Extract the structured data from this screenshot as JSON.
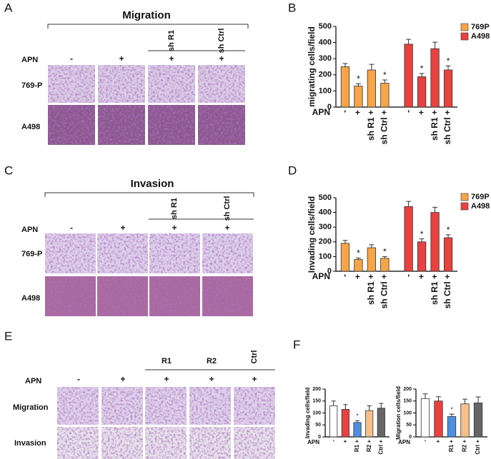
{
  "panels": {
    "letters": [
      "A",
      "B",
      "C",
      "D",
      "E",
      "F"
    ],
    "A": {
      "title": "Migration",
      "treatment": "APN",
      "conditions": [
        "-",
        "+",
        "+",
        "+"
      ],
      "knockdowns": [
        "sh R1",
        "sh Ctrl"
      ],
      "rows": [
        "769-P",
        "A498"
      ]
    },
    "C": {
      "title": "Invasion",
      "treatment": "APN",
      "conditions": [
        "-",
        "+",
        "+",
        "+"
      ],
      "knockdowns": [
        "sh R1",
        "sh Ctrl"
      ],
      "rows": [
        "769-P",
        "A498"
      ]
    },
    "E": {
      "treatment": "APN",
      "conditions": [
        "-",
        "+",
        "+",
        "+",
        "+"
      ],
      "knockdowns": [
        "R1",
        "R2",
        "Ctrl"
      ],
      "rows": [
        "Migration",
        "Invasion"
      ]
    }
  },
  "chart_data": [
    {
      "type": "bar",
      "y_label": "migrating cells/field",
      "x_label": "APN",
      "categories": [
        "-",
        "+",
        "sh R1 +",
        "sh Ctrl +"
      ],
      "ylim": [
        0,
        500
      ],
      "yticks": [
        0,
        100,
        200,
        300,
        400,
        500
      ],
      "legend": "right",
      "series": [
        {
          "name": "769P",
          "color": "#f7a546",
          "values": [
            250,
            130,
            230,
            148
          ],
          "errors": [
            20,
            15,
            35,
            20
          ],
          "significance": [
            null,
            "*",
            null,
            "*"
          ]
        },
        {
          "name": "A498",
          "color": "#e8413f",
          "values": [
            390,
            188,
            362,
            230
          ],
          "errors": [
            30,
            20,
            40,
            25
          ],
          "significance": [
            null,
            "*",
            null,
            "*"
          ]
        }
      ]
    },
    {
      "type": "bar",
      "y_label": "Invading cells/field",
      "x_label": "APN",
      "categories": [
        "-",
        "+",
        "sh R1 +",
        "sh Ctrl +"
      ],
      "ylim": [
        0,
        500
      ],
      "yticks": [
        0,
        100,
        200,
        300,
        400,
        500
      ],
      "legend": "right",
      "series": [
        {
          "name": "769P",
          "color": "#f7a546",
          "values": [
            190,
            80,
            160,
            88
          ],
          "errors": [
            20,
            10,
            20,
            12
          ],
          "significance": [
            null,
            "*",
            null,
            "*"
          ]
        },
        {
          "name": "A498",
          "color": "#e8413f",
          "values": [
            440,
            200,
            400,
            228
          ],
          "errors": [
            35,
            20,
            35,
            20
          ],
          "significance": [
            null,
            "*",
            null,
            "*"
          ]
        }
      ]
    },
    {
      "type": "bar",
      "y_label": "Invading cells/field",
      "x_label": "APN",
      "categories": [
        "-",
        "+",
        "R1 +",
        "R2 +",
        "Ctrl +"
      ],
      "ylim": [
        0,
        200
      ],
      "yticks": [
        0,
        50,
        100,
        150,
        200
      ],
      "series": [
        {
          "colors": [
            "#ffffff",
            "#e8413f",
            "#4a90e2",
            "#f7c08a",
            "#666666"
          ],
          "values": [
            130,
            115,
            60,
            110,
            120
          ],
          "errors": [
            20,
            20,
            8,
            20,
            20
          ],
          "significance": [
            null,
            null,
            "*",
            null,
            null
          ]
        }
      ]
    },
    {
      "type": "bar",
      "y_label": "Migration cells/field",
      "x_label": "APN",
      "categories": [
        "-",
        "+",
        "R1 +",
        "R2 +",
        "Ctrl +"
      ],
      "ylim": [
        0,
        200
      ],
      "yticks": [
        0,
        50,
        100,
        150,
        200
      ],
      "series": [
        {
          "colors": [
            "#ffffff",
            "#e8413f",
            "#4a90e2",
            "#f7c08a",
            "#666666"
          ],
          "values": [
            160,
            150,
            85,
            138,
            142
          ],
          "errors": [
            20,
            18,
            10,
            20,
            25
          ],
          "significance": [
            null,
            null,
            "*",
            null,
            null
          ]
        }
      ]
    }
  ]
}
